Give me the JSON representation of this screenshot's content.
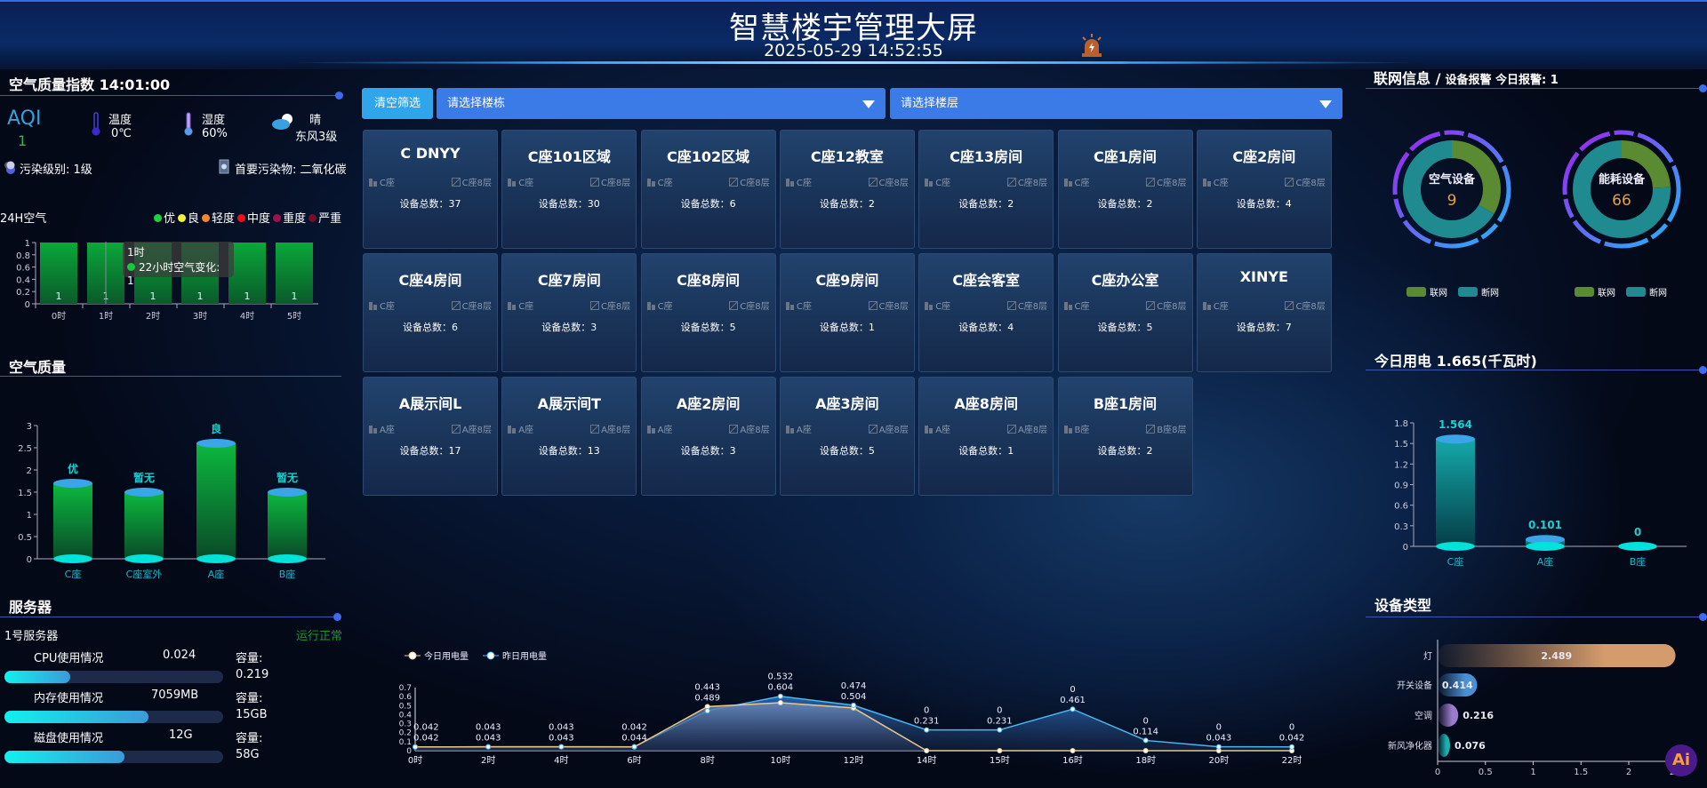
{
  "header": {
    "title": "智慧楼宇管理大屏",
    "datetime": "2025-05-29 14:52:55",
    "alarm_icon": "alarm-light-icon"
  },
  "aqi_panel": {
    "title": "空气质量指数 14:01:00",
    "aqi_label": "AQI",
    "aqi_value": "1",
    "temperature": {
      "label": "温度",
      "value": "0℃"
    },
    "humidity": {
      "label": "湿度",
      "value": "60%"
    },
    "weather": {
      "label": "晴",
      "wind": "东风3级"
    },
    "pollution_level": "污染级别: 1级",
    "primary_pollutant": "首要污染物: 二氧化碳",
    "h24_title": "24H空气",
    "legend": [
      {
        "label": "优",
        "color": "#19d43a"
      },
      {
        "label": "良",
        "color": "#f5f23a"
      },
      {
        "label": "轻度",
        "color": "#f5862a"
      },
      {
        "label": "中度",
        "color": "#f0101a"
      },
      {
        "label": "重度",
        "color": "#a0104e"
      },
      {
        "label": "严重",
        "color": "#7a0a2a"
      }
    ],
    "tooltip": {
      "title": "1时",
      "text": "22小时空气变化: 1"
    }
  },
  "air_quality_panel": {
    "title": "空气质量"
  },
  "server_panel": {
    "title": "服务器",
    "name": "1号服务器",
    "status": "运行正常",
    "capacity_label": "容量:",
    "rows": [
      {
        "label": "CPU使用情况",
        "value": "0.024",
        "capacity": "0.219",
        "percent": 30
      },
      {
        "label": "内存使用情况",
        "value": "7059MB",
        "capacity": "15GB",
        "percent": 66
      },
      {
        "label": "磁盘使用情况",
        "value": "12G",
        "capacity": "58G",
        "percent": 55
      }
    ]
  },
  "filters": {
    "clear_label": "清空筛选",
    "building_placeholder": "请选择楼栋",
    "floor_placeholder": "请选择楼层"
  },
  "rooms": {
    "count_label": "设备总数：",
    "items": [
      {
        "name": "C DNYY",
        "building": "C座",
        "floor": "C座8层",
        "count": "37"
      },
      {
        "name": "C座101区域",
        "building": "C座",
        "floor": "C座8层",
        "count": "30"
      },
      {
        "name": "C座102区域",
        "building": "C座",
        "floor": "C座8层",
        "count": "6"
      },
      {
        "name": "C座12教室",
        "building": "C座",
        "floor": "C座8层",
        "count": "2"
      },
      {
        "name": "C座13房间",
        "building": "C座",
        "floor": "C座8层",
        "count": "2"
      },
      {
        "name": "C座1房间",
        "building": "C座",
        "floor": "C座8层",
        "count": "2"
      },
      {
        "name": "C座2房间",
        "building": "C座",
        "floor": "C座8层",
        "count": "4"
      },
      {
        "name": "C座4房间",
        "building": "C座",
        "floor": "C座8层",
        "count": "6"
      },
      {
        "name": "C座7房间",
        "building": "C座",
        "floor": "C座8层",
        "count": "3"
      },
      {
        "name": "C座8房间",
        "building": "C座",
        "floor": "C座8层",
        "count": "5"
      },
      {
        "name": "C座9房间",
        "building": "C座",
        "floor": "C座8层",
        "count": "1"
      },
      {
        "name": "C座会客室",
        "building": "C座",
        "floor": "C座8层",
        "count": "4"
      },
      {
        "name": "C座办公室",
        "building": "C座",
        "floor": "C座8层",
        "count": "5"
      },
      {
        "name": "XINYE",
        "building": "C座",
        "floor": "C座8层",
        "count": "7"
      },
      {
        "name": "A展示间L",
        "building": "A座",
        "floor": "A座8层",
        "count": "17"
      },
      {
        "name": "A展示间T",
        "building": "A座",
        "floor": "A座8层",
        "count": "13"
      },
      {
        "name": "A座2房间",
        "building": "A座",
        "floor": "A座8层",
        "count": "3"
      },
      {
        "name": "A座3房间",
        "building": "A座",
        "floor": "A座8层",
        "count": "5"
      },
      {
        "name": "A座8房间",
        "building": "A座",
        "floor": "A座8层",
        "count": "1"
      },
      {
        "name": "B座1房间",
        "building": "B座",
        "floor": "B座8层",
        "count": "2"
      }
    ]
  },
  "network_panel": {
    "title": "联网信息 /",
    "subtitle": "设备报警 今日报警: 1"
  },
  "power_panel": {
    "title": "今日用电 1.665(千瓦时)"
  },
  "device_type_panel": {
    "title": "设备类型"
  },
  "chart_data": [
    {
      "id": "h24",
      "type": "bar",
      "categories": [
        "0时",
        "1时",
        "2时",
        "3时",
        "4时",
        "5时"
      ],
      "values": [
        1,
        1,
        1,
        1,
        1,
        1
      ],
      "ylim": [
        0,
        1
      ],
      "yticks": [
        "0",
        "0.2",
        "0.4",
        "0.6",
        "0.8",
        "1"
      ],
      "color": "#0aa83a"
    },
    {
      "id": "air",
      "type": "bar",
      "categories": [
        "C座",
        "C座室外",
        "A座",
        "B座"
      ],
      "values": [
        1.7,
        1.5,
        2.6,
        1.5
      ],
      "labels": [
        "优",
        "暂无",
        "良",
        "暂无"
      ],
      "ylim": [
        0,
        3
      ],
      "yticks": [
        "0",
        "0.5",
        "1",
        "1.5",
        "2",
        "2.5",
        "3"
      ],
      "color": "#0aa83a"
    },
    {
      "id": "donuts",
      "type": "pie",
      "legend": [
        "联网",
        "断网"
      ],
      "colors": [
        "#5a8a32",
        "#1f8a90"
      ],
      "items": [
        {
          "name": "空气设备",
          "total": "9",
          "values": [
            3,
            6
          ]
        },
        {
          "name": "能耗设备",
          "total": "66",
          "values": [
            16,
            50
          ]
        }
      ]
    },
    {
      "id": "power",
      "type": "bar",
      "categories": [
        "C座",
        "A座",
        "B座"
      ],
      "values": [
        1.564,
        0.101,
        0
      ],
      "ylim": [
        0,
        1.8
      ],
      "yticks": [
        "0",
        "0.3",
        "0.6",
        "0.9",
        "1.2",
        "1.5",
        "1.8"
      ],
      "color": "#0fa5a5"
    },
    {
      "id": "devtype",
      "type": "bar",
      "orientation": "horizontal",
      "categories": [
        "灯",
        "开关设备",
        "空调",
        "新风净化器"
      ],
      "values": [
        2.489,
        0.414,
        0.216,
        0.076
      ],
      "xlim": [
        0,
        2.5
      ],
      "xticks": [
        "0",
        "0.5",
        "1",
        "1.5",
        "2",
        "2.5"
      ],
      "colors": [
        "#d49b6c",
        "#4a90d4",
        "#9a7ccc",
        "#19b0b0"
      ]
    },
    {
      "id": "line",
      "type": "area",
      "categories": [
        "0时",
        "2时",
        "4时",
        "6时",
        "8时",
        "10时",
        "12时",
        "14时",
        "15时",
        "16时",
        "18时",
        "20时",
        "22时"
      ],
      "ylim": [
        0,
        0.7
      ],
      "yticks": [
        "0",
        "0.1",
        "0.2",
        "0.3",
        "0.4",
        "0.5",
        "0.6",
        "0.7"
      ],
      "series": [
        {
          "name": "今日用电量",
          "color": "#e8c98a",
          "values": [
            0.042,
            0.043,
            0.043,
            0.042,
            0.489,
            0.532,
            0.474,
            0,
            0,
            0,
            0,
            0,
            0
          ]
        },
        {
          "name": "昨日用电量",
          "color": "#4ab8f0",
          "values": [
            0.042,
            0.043,
            0.043,
            0.044,
            0.443,
            0.604,
            0.504,
            0.231,
            0.231,
            0.461,
            0.114,
            0.043,
            0.042
          ]
        }
      ],
      "legend_position": "top-left"
    }
  ]
}
